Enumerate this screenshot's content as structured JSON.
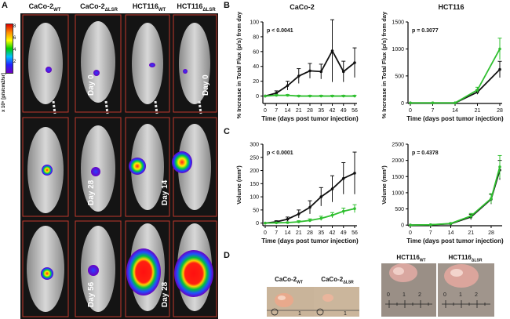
{
  "panels": {
    "A": "A",
    "B": "B",
    "C": "C",
    "D": "D"
  },
  "colorbar": {
    "ticks": [
      "8",
      "6",
      "4",
      "2"
    ],
    "unit": "x 10⁵ [p/s/cm2/sr]"
  },
  "imaging": {
    "columns": [
      {
        "base": "CaCo-2",
        "sub": "WT"
      },
      {
        "base": "CaCo-2",
        "sub": "ΔLSR"
      },
      {
        "base": "HCT116",
        "sub": "WT"
      },
      {
        "base": "HCT116",
        "sub": "ΔLSR"
      }
    ],
    "rows_caco": [
      "Day 0",
      "Day 28",
      "Day 56"
    ],
    "rows_hct": [
      "Day 0",
      "Day 14",
      "Day 28"
    ]
  },
  "colors": {
    "wt": "#111111",
    "lsr": "#2fbf2f",
    "panel_bg": "#141414",
    "border": "#c0392b"
  },
  "chart_data": [
    {
      "id": "B-left",
      "type": "line",
      "title": "CaCo-2",
      "p": "p < 0.0041",
      "xlabel": "Time (days post tumor injection)",
      "ylabel": "% Increase in Total Flux (p/s) from day 0",
      "x": [
        0,
        7,
        14,
        21,
        28,
        35,
        42,
        49,
        56
      ],
      "xticks": [
        "0",
        "7",
        "14",
        "21",
        "28",
        "35",
        "42",
        "49",
        "56"
      ],
      "ylim": [
        -10,
        100
      ],
      "yticks": [
        "0",
        "20",
        "40",
        "60",
        "80",
        "100"
      ],
      "series": [
        {
          "name": "WT",
          "values": [
            0,
            4,
            14,
            27,
            34,
            33,
            61,
            33,
            45
          ],
          "err": [
            0,
            3,
            6,
            10,
            10,
            10,
            42,
            14,
            20
          ]
        },
        {
          "name": "ΔLSR",
          "values": [
            0,
            1,
            1,
            0,
            0,
            0,
            0,
            0,
            0
          ],
          "err": [
            0,
            1,
            1,
            1,
            1,
            1,
            1,
            1,
            1
          ]
        }
      ]
    },
    {
      "id": "B-right",
      "type": "line",
      "title": "HCT116",
      "p": "p = 0.3077",
      "xlabel": "Time (days post tumor injection)",
      "ylabel": "% Increase in Total Flux (p/s) from day 0",
      "x": [
        0,
        7,
        14,
        21,
        28
      ],
      "xticks": [
        "0",
        "7",
        "14",
        "21",
        "28"
      ],
      "ylim": [
        -10,
        1500
      ],
      "yticks": [
        "0",
        "500",
        "1000",
        "1500"
      ],
      "series": [
        {
          "name": "WT",
          "values": [
            0,
            0,
            0,
            200,
            620
          ],
          "err": [
            0,
            0,
            0,
            40,
            150
          ]
        },
        {
          "name": "ΔLSR",
          "values": [
            0,
            0,
            0,
            240,
            1000
          ],
          "err": [
            0,
            0,
            0,
            50,
            200
          ]
        }
      ]
    },
    {
      "id": "C-left",
      "type": "line",
      "title": "",
      "p": "p < 0.0001",
      "xlabel": "Time (days post tumor injection)",
      "ylabel": "Volume (mm³)",
      "x": [
        0,
        7,
        14,
        21,
        28,
        35,
        42,
        49,
        56
      ],
      "xticks": [
        "0",
        "7",
        "14",
        "21",
        "28",
        "35",
        "42",
        "49",
        "56"
      ],
      "ylim": [
        -10,
        300
      ],
      "yticks": [
        "0",
        "50",
        "100",
        "150",
        "200",
        "250",
        "300"
      ],
      "series": [
        {
          "name": "WT",
          "values": [
            0,
            5,
            15,
            35,
            60,
            100,
            130,
            170,
            190
          ],
          "err": [
            0,
            4,
            8,
            15,
            25,
            35,
            50,
            60,
            80
          ]
        },
        {
          "name": "ΔLSR",
          "values": [
            0,
            1,
            2,
            5,
            10,
            18,
            30,
            45,
            55
          ],
          "err": [
            0,
            1,
            2,
            4,
            6,
            8,
            10,
            12,
            15
          ]
        }
      ]
    },
    {
      "id": "C-right",
      "type": "line",
      "title": "",
      "p": "p = 0.4378",
      "xlabel": "Time (days post tumor injection)",
      "ylabel": "Volume (mm³)",
      "x": [
        0,
        7,
        14,
        21,
        28,
        31
      ],
      "xticks": [
        "0",
        "7",
        "14",
        "21",
        "28"
      ],
      "ylim": [
        -20,
        2500
      ],
      "yticks": [
        "0",
        "500",
        "1000",
        "1500",
        "2000",
        "2500"
      ],
      "series": [
        {
          "name": "WT",
          "values": [
            0,
            10,
            40,
            250,
            800,
            1700
          ],
          "err": [
            0,
            5,
            20,
            80,
            150,
            300
          ]
        },
        {
          "name": "ΔLSR",
          "values": [
            0,
            10,
            50,
            280,
            820,
            1800
          ],
          "err": [
            0,
            5,
            20,
            80,
            150,
            350
          ]
        }
      ]
    }
  ],
  "photos": {
    "caco_wt": {
      "base": "CaCo-2",
      "sub": "WT"
    },
    "caco_lsr": {
      "base": "CaCo-2",
      "sub": "ΔLSR"
    },
    "hct_wt": {
      "base": "HCT116",
      "sub": "WT"
    },
    "hct_lsr": {
      "base": "HCT116",
      "sub": "ΔLSR"
    },
    "ruler_small": "1",
    "ruler_large": [
      "0",
      "1",
      "2"
    ]
  }
}
